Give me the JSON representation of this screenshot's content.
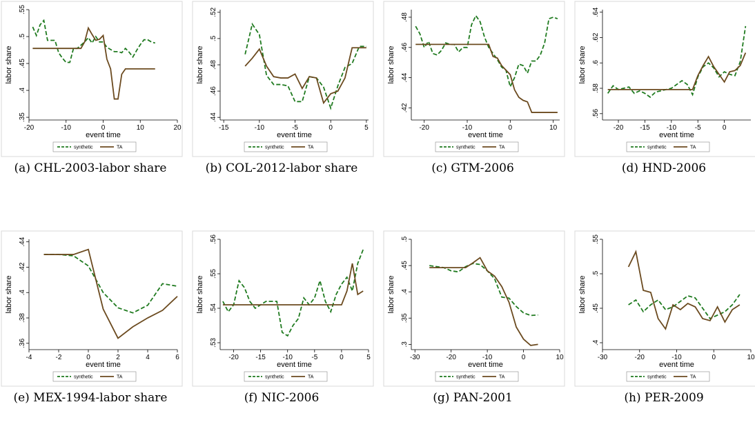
{
  "chart_data": [
    {
      "type": "line",
      "caption": "(a) CHL-2003-labor share",
      "xlabel": "event time",
      "ylabel": "labor share",
      "xlim": [
        -20,
        20
      ],
      "xticks": [
        -20,
        -10,
        0,
        10,
        20
      ],
      "ylim": [
        0.345,
        0.55
      ],
      "yticks": [
        {
          "value": 0.35,
          "label": ".35"
        },
        {
          "value": 0.4,
          "label": ".4"
        },
        {
          "value": 0.45,
          "label": ".45"
        },
        {
          "value": 0.5,
          "label": ".5"
        },
        {
          "value": 0.55,
          "label": ".55"
        }
      ],
      "x": [
        -19,
        -18,
        -17,
        -16,
        -15,
        -14,
        -13,
        -12,
        -11,
        -10,
        -9,
        -8,
        -7,
        -6,
        -5,
        -4,
        -3,
        -2,
        -1,
        0,
        1,
        2,
        3,
        4,
        5,
        6,
        7,
        8,
        9,
        10,
        11,
        12,
        13,
        14
      ],
      "series": [
        {
          "name": "synthetic",
          "color": "#1f7a1f",
          "dash": true,
          "values": [
            0.518,
            0.502,
            0.522,
            0.53,
            0.493,
            0.493,
            0.493,
            0.47,
            0.46,
            0.452,
            0.452,
            0.478,
            0.478,
            0.484,
            0.49,
            0.498,
            0.488,
            0.5,
            0.49,
            0.49,
            0.48,
            0.476,
            0.472,
            0.472,
            0.47,
            0.478,
            0.471,
            0.462,
            0.474,
            0.485,
            0.494,
            0.494,
            0.49,
            0.488
          ]
        },
        {
          "name": "TA",
          "color": "#6b4a1f",
          "dash": false,
          "values": [
            0.478,
            0.478,
            0.478,
            0.478,
            0.478,
            0.478,
            0.478,
            0.478,
            0.478,
            0.478,
            0.478,
            0.478,
            0.478,
            0.478,
            0.49,
            0.516,
            0.504,
            0.493,
            0.495,
            0.502,
            0.458,
            0.44,
            0.384,
            0.384,
            0.43,
            0.44,
            0.44,
            0.44,
            0.44,
            0.44,
            0.44,
            0.44,
            0.44,
            0.44
          ]
        }
      ]
    },
    {
      "type": "line",
      "caption": "(b) COL-2012-labor share",
      "xlabel": "event time",
      "ylabel": "labor share",
      "xlim": [
        -15.5,
        5.3
      ],
      "xticks": [
        -15,
        -10,
        -5,
        0,
        5
      ],
      "ylim": [
        0.438,
        0.522
      ],
      "yticks": [
        {
          "value": 0.44,
          "label": ".44"
        },
        {
          "value": 0.46,
          "label": ".46"
        },
        {
          "value": 0.48,
          "label": ".48"
        },
        {
          "value": 0.5,
          "label": ".5"
        },
        {
          "value": 0.52,
          "label": ".52"
        }
      ],
      "x": [
        -12,
        -11,
        -10,
        -9,
        -8,
        -7,
        -6,
        -5,
        -4,
        -3,
        -2,
        -1,
        0,
        1,
        2,
        3,
        4,
        5
      ],
      "series": [
        {
          "name": "synthetic",
          "color": "#1f7a1f",
          "dash": true,
          "values": [
            0.488,
            0.511,
            0.503,
            0.472,
            0.465,
            0.465,
            0.464,
            0.452,
            0.452,
            0.471,
            0.47,
            0.463,
            0.447,
            0.464,
            0.478,
            0.481,
            0.494,
            0.494
          ]
        },
        {
          "name": "TA",
          "color": "#6b4a1f",
          "dash": false,
          "values": [
            0.479,
            0.485,
            0.492,
            0.479,
            0.471,
            0.47,
            0.47,
            0.473,
            0.462,
            0.471,
            0.47,
            0.451,
            0.458,
            0.46,
            0.47,
            0.493,
            0.493,
            0.493
          ]
        }
      ]
    },
    {
      "type": "line",
      "caption": "(c) GTM-2006",
      "xlabel": "event time",
      "ylabel": "labor share",
      "xlim": [
        -23,
        11.5
      ],
      "xticks": [
        -20,
        -10,
        0,
        10
      ],
      "ylim": [
        0.412,
        0.485
      ],
      "yticks": [
        {
          "value": 0.42,
          "label": ".42"
        },
        {
          "value": 0.44,
          "label": ".44"
        },
        {
          "value": 0.46,
          "label": ".46"
        },
        {
          "value": 0.48,
          "label": ".48"
        }
      ],
      "x": [
        -22,
        -21,
        -20,
        -19,
        -18,
        -17,
        -16,
        -15,
        -14,
        -13,
        -12,
        -11,
        -10,
        -9,
        -8,
        -7,
        -6,
        -5,
        -4,
        -3,
        -2,
        -1,
        0,
        1,
        2,
        3,
        4,
        5,
        6,
        7,
        8,
        9,
        10,
        11
      ],
      "series": [
        {
          "name": "synthetic",
          "color": "#1f7a1f",
          "dash": true,
          "values": [
            0.474,
            0.469,
            0.46,
            0.464,
            0.456,
            0.455,
            0.458,
            0.463,
            0.462,
            0.462,
            0.457,
            0.46,
            0.46,
            0.475,
            0.481,
            0.477,
            0.467,
            0.46,
            0.456,
            0.452,
            0.447,
            0.445,
            0.434,
            0.44,
            0.449,
            0.448,
            0.443,
            0.451,
            0.451,
            0.455,
            0.463,
            0.479,
            0.48,
            0.479
          ]
        },
        {
          "name": "TA",
          "color": "#6b4a1f",
          "dash": false,
          "values": [
            0.462,
            0.462,
            0.462,
            0.462,
            0.462,
            0.462,
            0.462,
            0.462,
            0.462,
            0.462,
            0.462,
            0.462,
            0.462,
            0.462,
            0.462,
            0.462,
            0.462,
            0.462,
            0.454,
            0.453,
            0.448,
            0.445,
            0.442,
            0.432,
            0.427,
            0.425,
            0.424,
            0.417,
            0.417,
            0.417,
            0.417,
            0.417,
            0.417,
            0.417
          ]
        }
      ]
    },
    {
      "type": "line",
      "caption": "(d) HND-2006",
      "xlabel": "event time",
      "ylabel": "labor share",
      "xlim": [
        -23,
        5
      ],
      "xticks": [
        -20,
        -15,
        -10,
        -5,
        0
      ],
      "ylim": [
        0.555,
        0.642
      ],
      "yticks": [
        {
          "value": 0.56,
          "label": ".56"
        },
        {
          "value": 0.58,
          "label": ".58"
        },
        {
          "value": 0.6,
          "label": ".6"
        },
        {
          "value": 0.62,
          "label": ".62"
        },
        {
          "value": 0.64,
          "label": ".64"
        }
      ],
      "x": [
        -22,
        -21,
        -20,
        -19,
        -18,
        -17,
        -16,
        -15,
        -14,
        -13,
        -12,
        -11,
        -10,
        -9,
        -8,
        -7,
        -6,
        -5,
        -4,
        -3,
        -2,
        -1,
        0,
        1,
        2,
        3,
        4
      ],
      "series": [
        {
          "name": "synthetic",
          "color": "#1f7a1f",
          "dash": true,
          "values": [
            0.576,
            0.582,
            0.579,
            0.58,
            0.581,
            0.576,
            0.578,
            0.576,
            0.573,
            0.577,
            0.578,
            0.579,
            0.58,
            0.583,
            0.586,
            0.583,
            0.575,
            0.589,
            0.597,
            0.6,
            0.596,
            0.589,
            0.593,
            0.591,
            0.59,
            0.601,
            0.629
          ]
        },
        {
          "name": "TA",
          "color": "#6b4a1f",
          "dash": false,
          "values": [
            0.579,
            0.579,
            0.579,
            0.579,
            0.579,
            0.579,
            0.579,
            0.579,
            0.579,
            0.579,
            0.579,
            0.579,
            0.579,
            0.579,
            0.579,
            0.579,
            0.579,
            0.59,
            0.598,
            0.605,
            0.597,
            0.591,
            0.585,
            0.593,
            0.594,
            0.598,
            0.608
          ]
        }
      ]
    },
    {
      "type": "line",
      "caption": "(e) MEX-1994-labor share",
      "xlabel": "event time",
      "ylabel": "labor share",
      "xlim": [
        -4,
        6
      ],
      "xticks": [
        -4,
        -2,
        0,
        2,
        4,
        6
      ],
      "ylim": [
        0.355,
        0.442
      ],
      "yticks": [
        {
          "value": 0.36,
          "label": ".36"
        },
        {
          "value": 0.38,
          "label": ".38"
        },
        {
          "value": 0.4,
          "label": ".4"
        },
        {
          "value": 0.42,
          "label": ".42"
        },
        {
          "value": 0.44,
          "label": ".44"
        }
      ],
      "x": [
        -3,
        -2,
        -1,
        0,
        1,
        2,
        3,
        4,
        5,
        6
      ],
      "series": [
        {
          "name": "synthetic",
          "color": "#1f7a1f",
          "dash": true,
          "values": [
            0.43,
            0.43,
            0.429,
            0.421,
            0.4,
            0.388,
            0.384,
            0.39,
            0.407,
            0.405
          ]
        },
        {
          "name": "TA",
          "color": "#6b4a1f",
          "dash": false,
          "values": [
            0.43,
            0.43,
            0.43,
            0.434,
            0.387,
            0.364,
            0.373,
            0.38,
            0.386,
            0.397
          ]
        }
      ]
    },
    {
      "type": "line",
      "caption": "(f) NIC-2006",
      "xlabel": "event time",
      "ylabel": "labor share",
      "xlim": [
        -22.5,
        5
      ],
      "xticks": [
        -20,
        -15,
        -10,
        -5,
        0,
        5
      ],
      "ylim": [
        0.528,
        0.56
      ],
      "yticks": [
        {
          "value": 0.53,
          "label": ".53"
        },
        {
          "value": 0.54,
          "label": ".54"
        },
        {
          "value": 0.55,
          "label": ".55"
        },
        {
          "value": 0.56,
          "label": ".56"
        }
      ],
      "x": [
        -22,
        -21,
        -20,
        -19,
        -18,
        -17,
        -16,
        -15,
        -14,
        -13,
        -12,
        -11,
        -10,
        -9,
        -8,
        -7,
        -6,
        -5,
        -4,
        -3,
        -2,
        -1,
        0,
        1,
        2,
        3,
        4
      ],
      "series": [
        {
          "name": "synthetic",
          "color": "#1f7a1f",
          "dash": true,
          "values": [
            0.542,
            0.539,
            0.541,
            0.548,
            0.546,
            0.542,
            0.54,
            0.541,
            0.542,
            0.542,
            0.542,
            0.533,
            0.532,
            0.535,
            0.537,
            0.543,
            0.541,
            0.543,
            0.548,
            0.542,
            0.539,
            0.544,
            0.547,
            0.549,
            0.545,
            0.553,
            0.557
          ]
        },
        {
          "name": "TA",
          "color": "#6b4a1f",
          "dash": false,
          "values": [
            0.541,
            0.541,
            0.541,
            0.541,
            0.541,
            0.541,
            0.541,
            0.541,
            0.541,
            0.541,
            0.541,
            0.541,
            0.541,
            0.541,
            0.541,
            0.541,
            0.541,
            0.541,
            0.541,
            0.541,
            0.541,
            0.541,
            0.541,
            0.545,
            0.553,
            0.544,
            0.545
          ]
        }
      ]
    },
    {
      "type": "line",
      "caption": "(g) PAN-2001",
      "xlabel": "event time",
      "ylabel": "labor share",
      "xlim": [
        -31,
        10
      ],
      "xticks": [
        -30,
        -20,
        -10,
        0,
        10
      ],
      "ylim": [
        0.29,
        0.5
      ],
      "yticks": [
        {
          "value": 0.3,
          "label": ".3"
        },
        {
          "value": 0.35,
          "label": ".35"
        },
        {
          "value": 0.4,
          "label": ".4"
        },
        {
          "value": 0.45,
          "label": ".45"
        },
        {
          "value": 0.5,
          "label": ".5"
        }
      ],
      "x": [
        -26,
        -24,
        -22,
        -20,
        -18,
        -16,
        -14,
        -12,
        -10,
        -8,
        -6,
        -4,
        -2,
        0,
        2,
        4
      ],
      "series": [
        {
          "name": "synthetic",
          "color": "#1f7a1f",
          "dash": true,
          "values": [
            0.45,
            0.448,
            0.446,
            0.44,
            0.438,
            0.448,
            0.454,
            0.452,
            0.44,
            0.425,
            0.39,
            0.388,
            0.372,
            0.36,
            0.355,
            0.356
          ]
        },
        {
          "name": "TA",
          "color": "#6b4a1f",
          "dash": false,
          "values": [
            0.446,
            0.446,
            0.446,
            0.446,
            0.446,
            0.446,
            0.455,
            0.465,
            0.44,
            0.43,
            0.41,
            0.38,
            0.333,
            0.31,
            0.298,
            0.3
          ]
        }
      ]
    },
    {
      "type": "line",
      "caption": "(h) PER-2009",
      "xlabel": "event time",
      "ylabel": "labor share",
      "xlim": [
        -30,
        10
      ],
      "xticks": [
        -30,
        -20,
        -10,
        0,
        10
      ],
      "ylim": [
        0.39,
        0.55
      ],
      "yticks": [
        {
          "value": 0.4,
          "label": ".4"
        },
        {
          "value": 0.45,
          "label": ".45"
        },
        {
          "value": 0.5,
          "label": ".5"
        },
        {
          "value": 0.55,
          "label": ".55"
        }
      ],
      "x": [
        -23,
        -21,
        -19,
        -17,
        -15,
        -13,
        -11,
        -9,
        -7,
        -5,
        -3,
        -1,
        1,
        3,
        5,
        7
      ],
      "series": [
        {
          "name": "synthetic",
          "color": "#1f7a1f",
          "dash": true,
          "values": [
            0.455,
            0.462,
            0.445,
            0.455,
            0.462,
            0.448,
            0.452,
            0.46,
            0.468,
            0.465,
            0.45,
            0.435,
            0.44,
            0.445,
            0.455,
            0.47
          ]
        },
        {
          "name": "TA",
          "color": "#6b4a1f",
          "dash": false,
          "values": [
            0.51,
            0.532,
            0.476,
            0.473,
            0.435,
            0.42,
            0.455,
            0.448,
            0.457,
            0.452,
            0.435,
            0.432,
            0.452,
            0.43,
            0.448,
            0.455
          ]
        }
      ]
    }
  ]
}
